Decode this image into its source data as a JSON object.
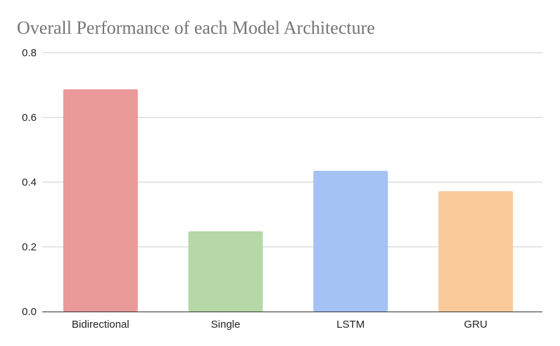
{
  "chart_data": {
    "type": "bar",
    "title": "Overall Performance of each Model Architecture",
    "xlabel": "",
    "ylabel": "",
    "categories": [
      "Bidirectional",
      "Single",
      "LSTM",
      "GRU"
    ],
    "values": [
      0.687,
      0.248,
      0.435,
      0.372
    ],
    "colors": [
      "#ea9999",
      "#b6d7a8",
      "#a4c2f4",
      "#f9cb9c"
    ],
    "ylim": [
      0,
      0.8
    ],
    "yticks": [
      0.0,
      0.2,
      0.4,
      0.6,
      0.8
    ],
    "ytick_labels": [
      "0.0",
      "0.2",
      "0.4",
      "0.6",
      "0.8"
    ],
    "grid": true,
    "legend": "none"
  }
}
